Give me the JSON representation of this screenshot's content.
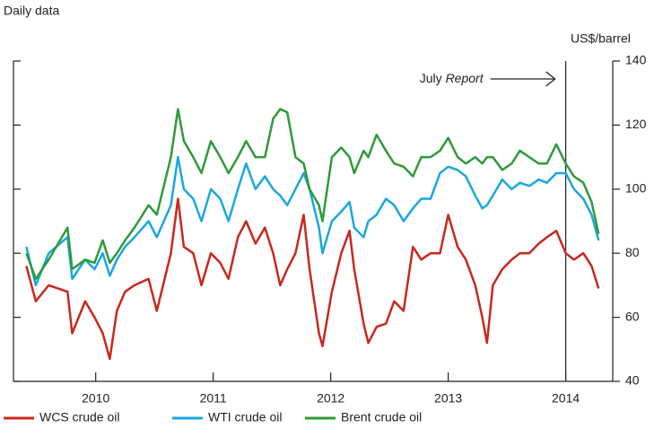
{
  "chart_data": {
    "type": "line",
    "subtitle": "Daily data",
    "y_label": "US$/barrel",
    "annotation": {
      "label": "July",
      "label_italic": "Report",
      "x": 2014.0
    },
    "x": [
      2009.41,
      2009.49,
      2009.6,
      2009.76,
      2009.8,
      2009.91,
      2009.99,
      2010.06,
      2010.12,
      2010.18,
      2010.25,
      2010.33,
      2010.45,
      2010.52,
      2010.64,
      2010.7,
      2010.75,
      2010.83,
      2010.9,
      2010.98,
      2011.06,
      2011.13,
      2011.21,
      2011.28,
      2011.36,
      2011.44,
      2011.51,
      2011.57,
      2011.63,
      2011.7,
      2011.77,
      2011.82,
      2011.9,
      2011.93,
      2012.01,
      2012.09,
      2012.16,
      2012.2,
      2012.28,
      2012.32,
      2012.39,
      2012.47,
      2012.54,
      2012.62,
      2012.7,
      2012.77,
      2012.85,
      2012.93,
      2013.0,
      2013.08,
      2013.15,
      2013.23,
      2013.29,
      2013.33,
      2013.38,
      2013.46,
      2013.54,
      2013.61,
      2013.69,
      2013.77,
      2013.84,
      2013.92,
      2014.0,
      2014.07,
      2014.15,
      2014.22,
      2014.28
    ],
    "series": [
      {
        "name": "WCS crude oil",
        "color": "#c8281e",
        "values": [
          76,
          65,
          70,
          68,
          55,
          65,
          60,
          55,
          47,
          62,
          68,
          70,
          72,
          62,
          80,
          97,
          82,
          80,
          70,
          80,
          77,
          72,
          85,
          90,
          83,
          88,
          80,
          70,
          75,
          80,
          92,
          75,
          55,
          51,
          68,
          80,
          87,
          75,
          58,
          52,
          57,
          58,
          65,
          62,
          82,
          78,
          80,
          80,
          92,
          82,
          78,
          70,
          60,
          52,
          70,
          75,
          78,
          80,
          80,
          83,
          85,
          87,
          80,
          78,
          80,
          76,
          69
        ]
      },
      {
        "name": "WTI crude oil",
        "color": "#1aa7e0",
        "values": [
          82,
          70,
          80,
          85,
          72,
          78,
          75,
          80,
          73,
          78,
          82,
          85,
          90,
          85,
          95,
          110,
          100,
          97,
          90,
          100,
          97,
          90,
          100,
          108,
          100,
          104,
          100,
          98,
          95,
          100,
          105,
          100,
          88,
          80,
          90,
          93,
          96,
          88,
          85,
          90,
          92,
          97,
          95,
          90,
          94,
          97,
          97,
          105,
          107,
          106,
          104,
          98,
          94,
          95,
          98,
          103,
          100,
          102,
          101,
          103,
          102,
          105,
          105,
          100,
          97,
          92,
          84
        ]
      },
      {
        "name": "Brent crude oil",
        "color": "#2e9a3a",
        "values": [
          80,
          72,
          78,
          88,
          75,
          78,
          77,
          84,
          77,
          80,
          84,
          88,
          95,
          92,
          110,
          125,
          115,
          110,
          105,
          115,
          110,
          105,
          110,
          115,
          110,
          110,
          122,
          125,
          124,
          110,
          108,
          100,
          95,
          90,
          110,
          113,
          110,
          105,
          112,
          110,
          117,
          112,
          108,
          107,
          104,
          110,
          110,
          112,
          116,
          110,
          108,
          110,
          108,
          110,
          110,
          106,
          108,
          112,
          110,
          108,
          108,
          114,
          108,
          104,
          102,
          96,
          86
        ]
      }
    ],
    "xlim": [
      2009.3,
      2014.4
    ],
    "xticks": [
      2010,
      2011,
      2012,
      2013,
      2014
    ],
    "ylim": [
      40,
      140
    ],
    "yticks": [
      40,
      60,
      80,
      100,
      120,
      140
    ],
    "grid": false,
    "legend": "bottom"
  }
}
